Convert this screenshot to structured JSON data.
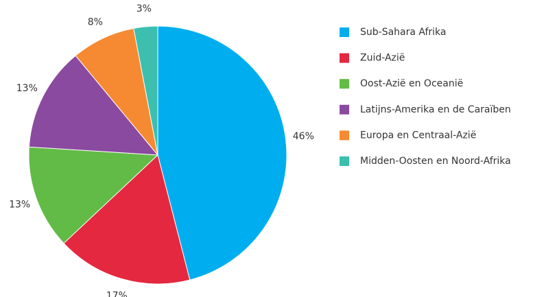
{
  "chart_data": {
    "type": "pie",
    "categories": [
      "Sub-Sahara Afrika",
      "Zuid-Azië",
      "Oost-Azië en Oceanië",
      "Latijns-Amerika en de Caraïben",
      "Europa en Centraal-Azië",
      "Midden-Oosten en Noord-Afrika"
    ],
    "values": [
      46,
      17,
      13,
      13,
      8,
      3
    ],
    "value_labels": [
      "46%",
      "17%",
      "13%",
      "13%",
      "8%",
      "3%"
    ],
    "colors": [
      "#00aeef",
      "#e4283f",
      "#62bb46",
      "#8a4a9f",
      "#f58a32",
      "#3cbfae"
    ],
    "legend": "right"
  }
}
